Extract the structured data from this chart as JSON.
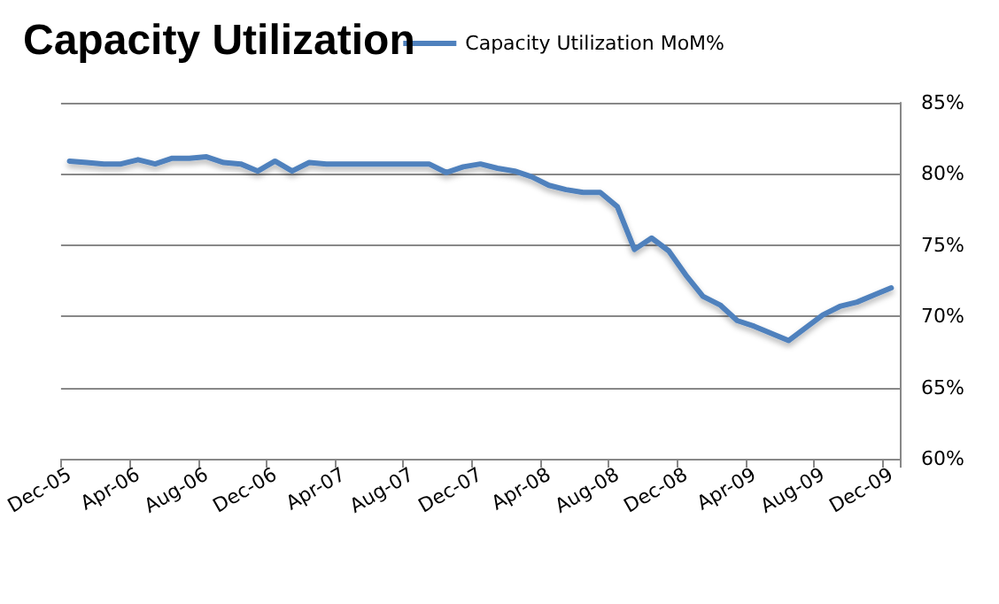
{
  "chart_data": {
    "type": "line",
    "title": "Capacity Utilization",
    "categories": [
      "Dec-05",
      null,
      null,
      null,
      "Apr-06",
      null,
      null,
      null,
      "Aug-06",
      null,
      null,
      null,
      "Dec-06",
      null,
      null,
      null,
      "Apr-07",
      null,
      null,
      null,
      "Aug-07",
      null,
      null,
      null,
      "Dec-07",
      null,
      null,
      null,
      "Apr-08",
      null,
      null,
      null,
      "Aug-08",
      null,
      null,
      null,
      "Dec-08",
      null,
      null,
      null,
      "Apr-09",
      null,
      null,
      null,
      "Aug-09",
      null,
      null,
      null,
      "Dec-09"
    ],
    "series": [
      {
        "name": "Capacity Utilization MoM%",
        "color": "#4f81bd",
        "values": [
          80.9,
          80.8,
          80.7,
          80.7,
          81.0,
          80.7,
          81.1,
          81.1,
          81.2,
          80.8,
          80.7,
          80.2,
          80.9,
          80.2,
          80.8,
          80.7,
          80.7,
          80.7,
          80.7,
          80.7,
          80.7,
          80.7,
          80.1,
          80.5,
          80.7,
          80.4,
          80.2,
          79.8,
          79.2,
          78.9,
          78.7,
          78.7,
          77.7,
          74.7,
          75.5,
          74.6,
          72.9,
          71.4,
          70.8,
          69.7,
          69.3,
          68.8,
          68.3,
          69.2,
          70.1,
          70.7,
          71.0,
          71.5,
          72.0
        ]
      }
    ],
    "ylim": [
      60,
      85
    ],
    "yticks": [
      {
        "value": 60,
        "label": "60%"
      },
      {
        "value": 65,
        "label": "65%"
      },
      {
        "value": 70,
        "label": "70%"
      },
      {
        "value": 75,
        "label": "75%"
      },
      {
        "value": 80,
        "label": "80%"
      },
      {
        "value": 85,
        "label": "85%"
      }
    ],
    "grid": "y",
    "legend": "top right",
    "marker": "none",
    "line_style": "solid"
  }
}
